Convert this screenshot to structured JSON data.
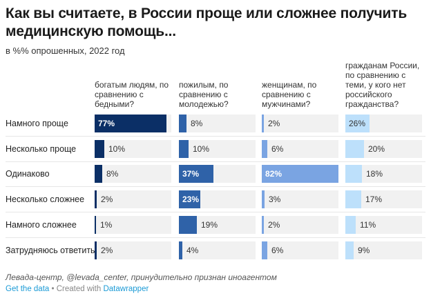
{
  "title": "Как вы считаете, в России проще или сложнее получить медицинскую помощь...",
  "subtitle": "в %% опрошенных, 2022 год",
  "chart_data": {
    "type": "bar",
    "orientation": "horizontal",
    "title": "Как вы считаете, в России проще или сложнее получить медицинскую помощь...",
    "subtitle": "в %% опрошенных, 2022 год",
    "categories": [
      "Намного проще",
      "Несколько проще",
      "Одинаково",
      "Несколько сложнее",
      "Намного сложнее",
      "Затрудняюсь ответить"
    ],
    "xlim": [
      0,
      82
    ],
    "unit": "%",
    "series": [
      {
        "name": "богатым людям, по сравнению с бедными?",
        "color": "#0b2f66",
        "values": [
          77,
          10,
          8,
          2,
          1,
          2
        ]
      },
      {
        "name": "пожилым, по сравнению с молодежью?",
        "color": "#2f62a8",
        "values": [
          8,
          10,
          37,
          23,
          19,
          4
        ]
      },
      {
        "name": "женщинам, по сравнению с мужчинами?",
        "color": "#7aa4e2",
        "values": [
          2,
          6,
          82,
          3,
          2,
          6
        ]
      },
      {
        "name": "гражданам России, по сравнению с теми, у кого нет российского гражданства?",
        "color": "#bde0fb",
        "values": [
          26,
          20,
          18,
          17,
          11,
          9
        ]
      }
    ]
  },
  "source": "Левада-центр, @levada_center, принудительно признан иноагентом",
  "footer": {
    "get_data": "Get the data",
    "separator": " • Created with ",
    "datawrapper": "Datawrapper"
  }
}
